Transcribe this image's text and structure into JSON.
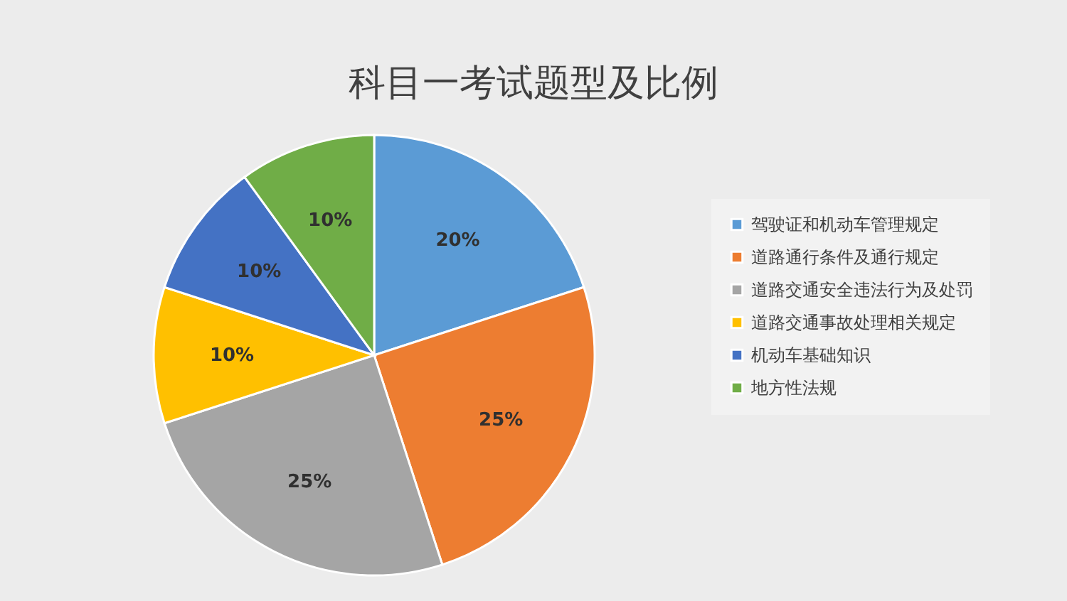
{
  "chart_data": {
    "type": "pie",
    "title": "科目一考试题型及比例",
    "categories": [
      "驾驶证和机动车管理规定",
      "道路通行条件及通行规定",
      "道路交通安全违法行为及处罚",
      "道路交通事故处理相关规定",
      "机动车基础知识",
      "地方性法规"
    ],
    "values": [
      20,
      25,
      25,
      10,
      10,
      10
    ],
    "colors": [
      "#5b9bd5",
      "#ed7d31",
      "#a5a5a5",
      "#ffc000",
      "#4472c4",
      "#70ad47"
    ],
    "value_labels": [
      "20%",
      "25%",
      "25%",
      "10%",
      "10%",
      "10%"
    ],
    "legend": "right"
  }
}
